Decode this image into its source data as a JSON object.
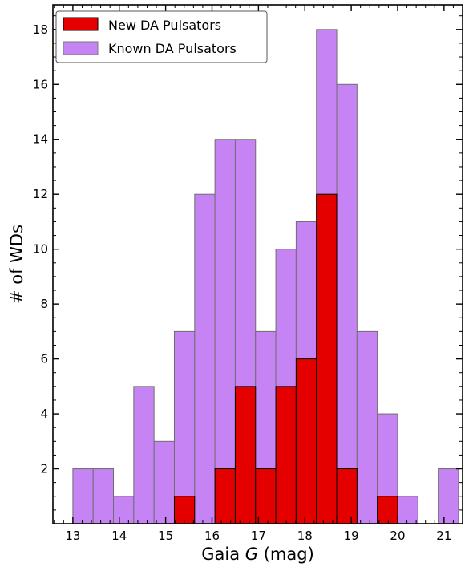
{
  "chart_data": {
    "type": "bar",
    "stacking": "overlay",
    "xlabel_prefix": "Gaia ",
    "xlabel_var": "G",
    "xlabel_suffix": " (mag)",
    "ylabel": "# of WDs",
    "xlim": [
      12.57,
      21.4
    ],
    "ylim": [
      0,
      18.9
    ],
    "x_ticks": [
      13,
      14,
      15,
      16,
      17,
      18,
      19,
      20,
      21
    ],
    "y_ticks": [
      2,
      4,
      6,
      8,
      10,
      12,
      14,
      16,
      18
    ],
    "legend_position": "top-left",
    "bin_edges": [
      13.0,
      13.4375,
      13.875,
      14.3125,
      14.75,
      15.1875,
      15.625,
      16.0625,
      16.5,
      16.9375,
      17.375,
      17.8125,
      18.25,
      18.6875,
      19.125,
      19.5625,
      20.0,
      20.4375,
      20.875
    ],
    "series": [
      {
        "name": "Known DA Pulsators",
        "color": "#c683f3",
        "values": [
          2,
          2,
          1,
          5,
          3,
          7,
          12,
          14,
          14,
          7,
          10,
          11,
          18,
          16,
          7,
          4,
          1,
          0,
          2
        ]
      },
      {
        "name": "New DA Pulsators",
        "color": "#e50000",
        "values": [
          0,
          0,
          0,
          0,
          0,
          1,
          0,
          2,
          5,
          2,
          5,
          6,
          12,
          2,
          0,
          1,
          0,
          0,
          0
        ]
      }
    ]
  }
}
